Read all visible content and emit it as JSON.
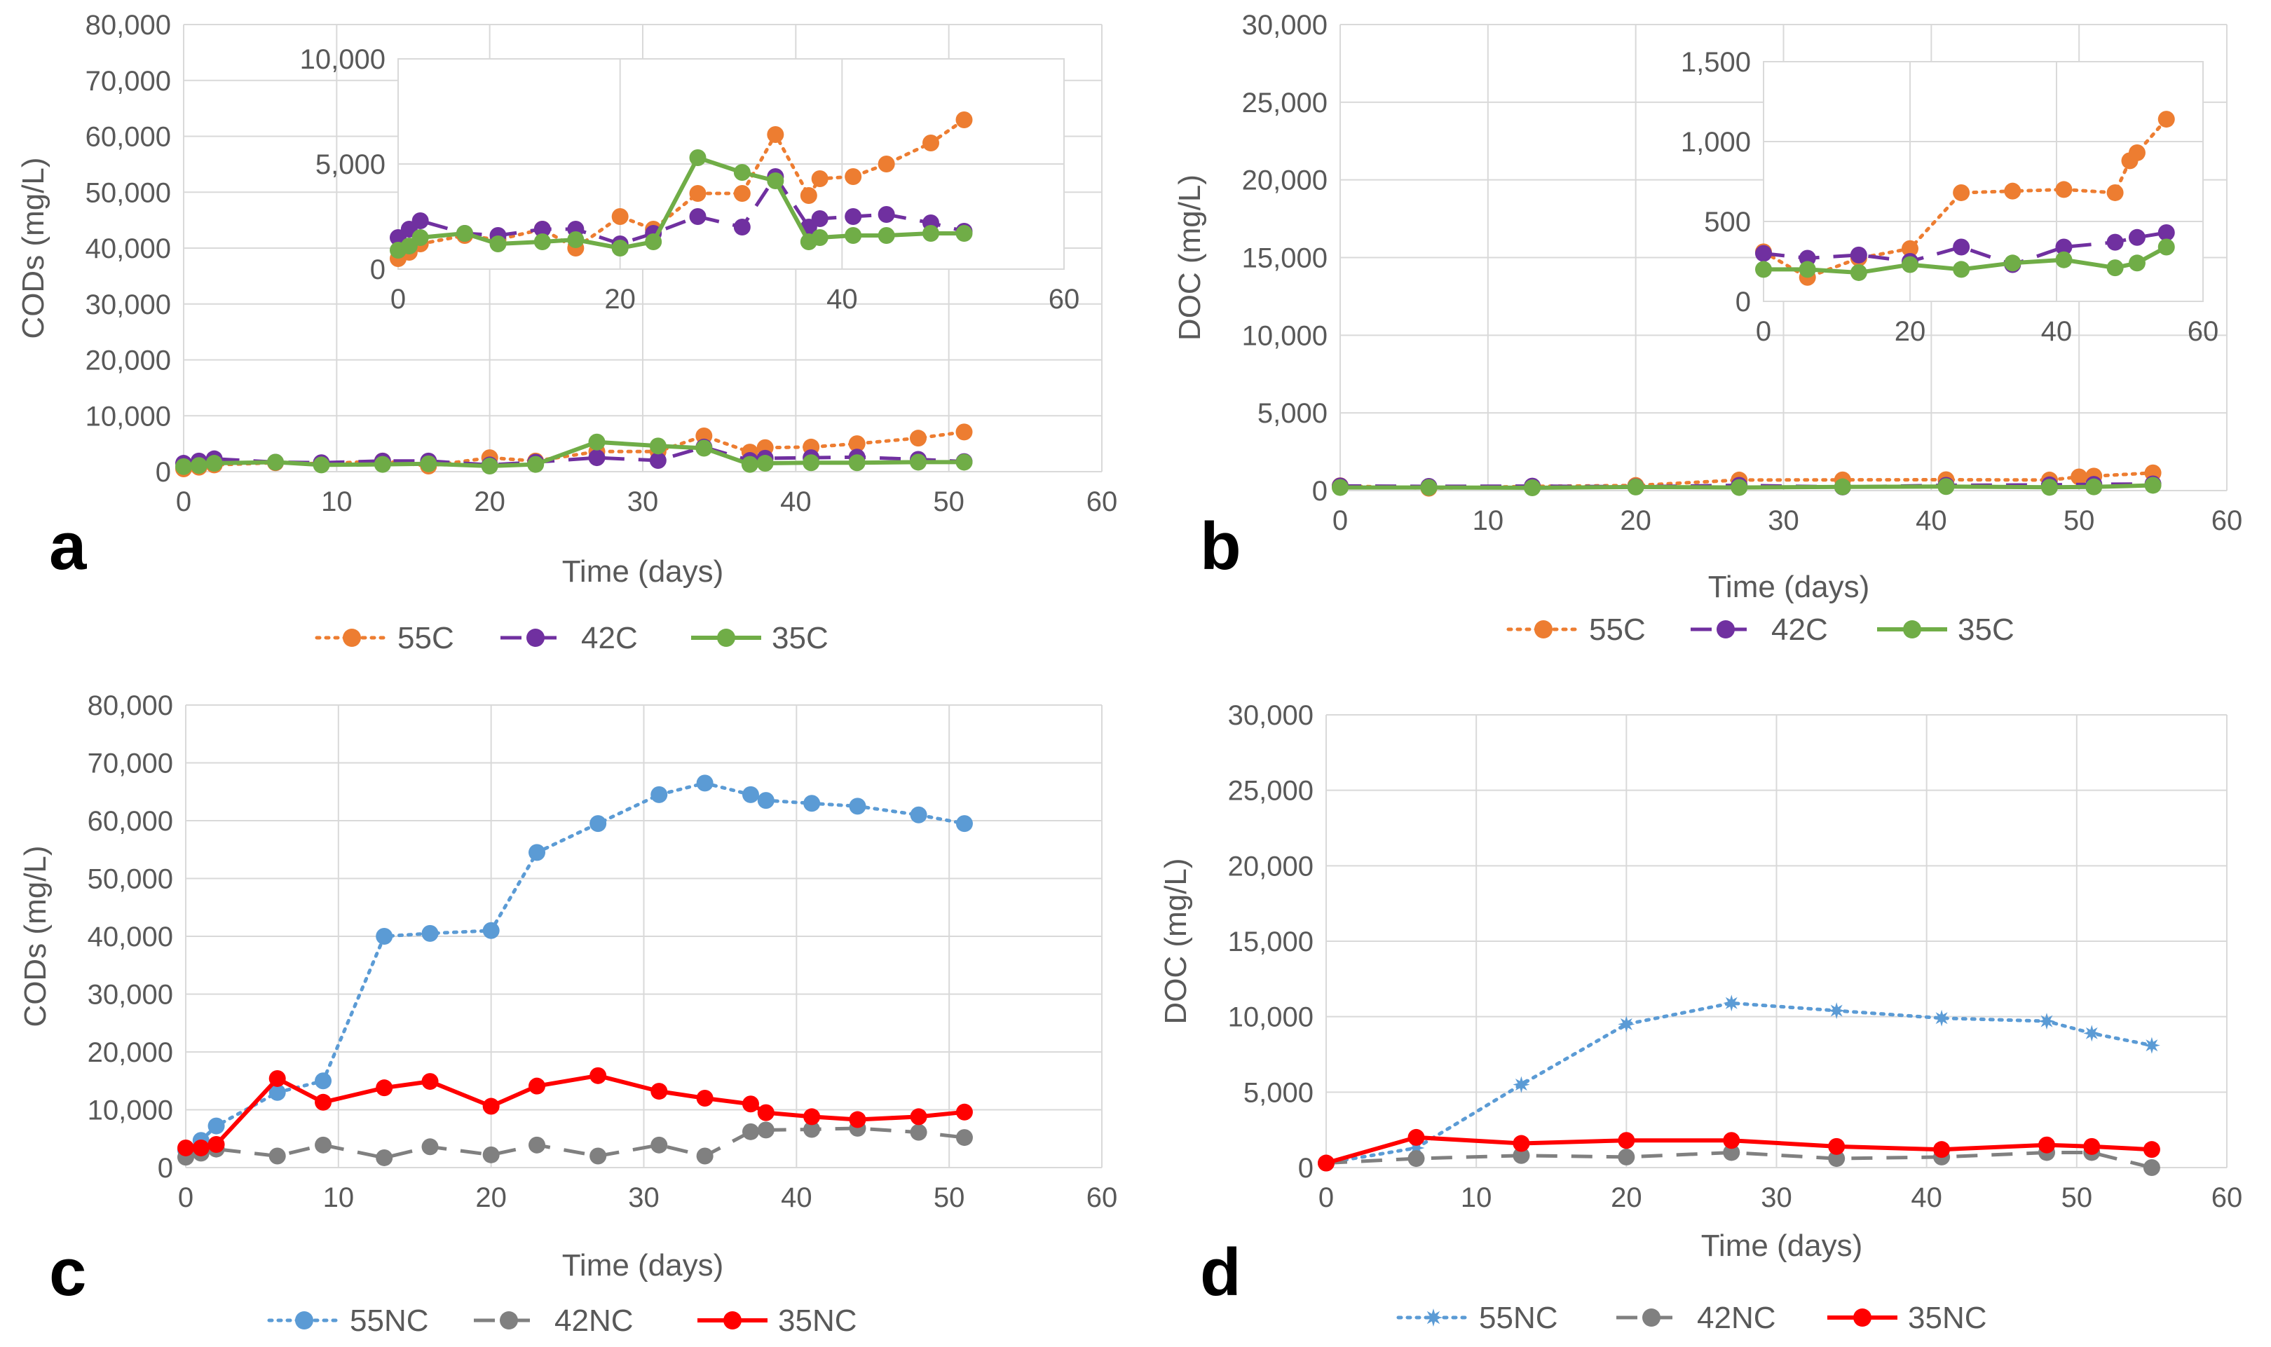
{
  "figure": {
    "panel_letters": [
      "a",
      "b",
      "c",
      "d"
    ]
  },
  "colors": {
    "s55": "#ED7D31",
    "s42": "#7030A0",
    "s35": "#70AD47",
    "nc55": "#5B9BD5",
    "nc42": "#808080",
    "nc35": "#FF0000",
    "grid": "#D9D9D9",
    "text": "#595959"
  },
  "chart_data": [
    {
      "id": "a",
      "type": "line",
      "ylabel": "CODs (mg/L)",
      "xlabel": "Time (days)",
      "xlim": [
        0,
        60
      ],
      "xticks": [
        0,
        10,
        20,
        30,
        40,
        50,
        60
      ],
      "ylim": [
        0,
        80000
      ],
      "yticks": [
        0,
        10000,
        20000,
        30000,
        40000,
        50000,
        60000,
        70000,
        80000
      ],
      "ytick_labels": [
        "0",
        "10,000",
        "20,000",
        "30,000",
        "40,000",
        "50,000",
        "60,000",
        "70,000",
        "80,000"
      ],
      "xtick_labels": [
        "0",
        "10",
        "20",
        "30",
        "40",
        "50",
        "60"
      ],
      "legend": [
        "55C",
        "42C",
        "35C"
      ],
      "series": [
        {
          "name": "55C",
          "style": "dotted",
          "color": "#ED7D31",
          "x": [
            0,
            1,
            2,
            6,
            9,
            13,
            16,
            20,
            23,
            27,
            31,
            34,
            37,
            38,
            41,
            44,
            48,
            51
          ],
          "y": [
            500,
            800,
            1200,
            1600,
            1400,
            1900,
            1000,
            2500,
            1900,
            3600,
            3600,
            6400,
            3500,
            4300,
            4400,
            5000,
            6000,
            7100
          ]
        },
        {
          "name": "42C",
          "style": "dashed",
          "color": "#7030A0",
          "x": [
            0,
            1,
            2,
            6,
            9,
            13,
            16,
            20,
            23,
            27,
            31,
            34,
            37,
            38,
            41,
            44,
            48,
            51
          ],
          "y": [
            1500,
            1900,
            2300,
            1700,
            1600,
            1900,
            1900,
            1200,
            1700,
            2500,
            2000,
            4400,
            2000,
            2400,
            2500,
            2600,
            2200,
            1800
          ]
        },
        {
          "name": "35C",
          "style": "solid",
          "color": "#70AD47",
          "x": [
            0,
            1,
            2,
            6,
            9,
            13,
            16,
            20,
            23,
            27,
            31,
            34,
            37,
            38,
            41,
            44,
            48,
            51
          ],
          "y": [
            900,
            1100,
            1500,
            1700,
            1200,
            1300,
            1400,
            1000,
            1300,
            5300,
            4600,
            4200,
            1300,
            1500,
            1600,
            1600,
            1700,
            1700
          ]
        }
      ],
      "inset": {
        "xlim": [
          0,
          60
        ],
        "xticks": [
          0,
          20,
          40,
          60
        ],
        "xtick_labels": [
          "0",
          "20",
          "40",
          "60"
        ],
        "ylim": [
          0,
          10000
        ],
        "yticks": [
          0,
          5000,
          10000
        ],
        "ytick_labels": [
          "0",
          "5,000",
          "10,000"
        ]
      }
    },
    {
      "id": "b",
      "type": "line",
      "ylabel": "DOC (mg/L)",
      "xlabel": "Time (days)",
      "xlim": [
        0,
        60
      ],
      "xticks": [
        0,
        10,
        20,
        30,
        40,
        50,
        60
      ],
      "ylim": [
        0,
        30000
      ],
      "yticks": [
        0,
        5000,
        10000,
        15000,
        20000,
        25000,
        30000
      ],
      "ytick_labels": [
        "0",
        "5,000",
        "10,000",
        "15,000",
        "20,000",
        "25,000",
        "30,000"
      ],
      "xtick_labels": [
        "0",
        "10",
        "20",
        "30",
        "40",
        "50",
        "60"
      ],
      "legend": [
        "55C",
        "42C",
        "35C"
      ],
      "series": [
        {
          "name": "55C",
          "style": "dotted",
          "color": "#ED7D31",
          "x": [
            0,
            6,
            13,
            20,
            27,
            34,
            41,
            48,
            50,
            51,
            55
          ],
          "y": [
            310,
            150,
            270,
            330,
            680,
            690,
            700,
            680,
            880,
            930,
            1140
          ]
        },
        {
          "name": "42C",
          "style": "dashed",
          "color": "#7030A0",
          "x": [
            0,
            6,
            13,
            20,
            27,
            34,
            41,
            48,
            51,
            55
          ],
          "y": [
            300,
            270,
            290,
            250,
            340,
            230,
            340,
            370,
            400,
            430
          ]
        },
        {
          "name": "35C",
          "style": "solid",
          "color": "#70AD47",
          "x": [
            0,
            6,
            13,
            20,
            27,
            34,
            41,
            48,
            51,
            55
          ],
          "y": [
            200,
            200,
            180,
            230,
            200,
            240,
            260,
            210,
            240,
            340
          ]
        }
      ],
      "inset": {
        "xlim": [
          0,
          60
        ],
        "xticks": [
          0,
          20,
          40,
          60
        ],
        "xtick_labels": [
          "0",
          "20",
          "40",
          "60"
        ],
        "ylim": [
          0,
          1500
        ],
        "yticks": [
          0,
          500,
          1000,
          1500
        ],
        "ytick_labels": [
          "0",
          "500",
          "1,000",
          "1,500"
        ]
      }
    },
    {
      "id": "c",
      "type": "line",
      "ylabel": "CODs (mg/L)",
      "xlabel": "Time (days)",
      "xlim": [
        0,
        60
      ],
      "xticks": [
        0,
        10,
        20,
        30,
        40,
        50,
        60
      ],
      "ylim": [
        0,
        80000
      ],
      "yticks": [
        0,
        10000,
        20000,
        30000,
        40000,
        50000,
        60000,
        70000,
        80000
      ],
      "ytick_labels": [
        "0",
        "10,000",
        "20,000",
        "30,000",
        "40,000",
        "50,000",
        "60,000",
        "70,000",
        "80,000"
      ],
      "xtick_labels": [
        "0",
        "10",
        "20",
        "30",
        "40",
        "50",
        "60"
      ],
      "legend": [
        "55NC",
        "42NC",
        "35NC"
      ],
      "series": [
        {
          "name": "55NC",
          "style": "dotted",
          "color": "#5B9BD5",
          "x": [
            0,
            1,
            2,
            6,
            9,
            13,
            16,
            20,
            23,
            27,
            31,
            34,
            37,
            38,
            41,
            44,
            48,
            51
          ],
          "y": [
            3000,
            4700,
            7200,
            13000,
            15000,
            40000,
            40500,
            41000,
            54500,
            59500,
            64500,
            66500,
            64500,
            63500,
            63000,
            62500,
            61000,
            59500
          ]
        },
        {
          "name": "42NC",
          "style": "dashed",
          "color": "#808080",
          "x": [
            0,
            1,
            2,
            6,
            9,
            13,
            16,
            20,
            23,
            27,
            31,
            34,
            37,
            38,
            41,
            44,
            48,
            51
          ],
          "y": [
            1800,
            2500,
            3200,
            2000,
            3900,
            1700,
            3600,
            2200,
            3900,
            2000,
            3900,
            2000,
            6200,
            6500,
            6600,
            6800,
            6100,
            5200
          ]
        },
        {
          "name": "35NC",
          "style": "solid",
          "color": "#FF0000",
          "x": [
            0,
            1,
            2,
            6,
            9,
            13,
            16,
            20,
            23,
            27,
            31,
            34,
            37,
            38,
            41,
            44,
            48,
            51
          ],
          "y": [
            3400,
            3400,
            4000,
            15400,
            11300,
            13800,
            14900,
            10600,
            14100,
            15900,
            13200,
            12000,
            11000,
            9500,
            8800,
            8300,
            8800,
            9600
          ]
        }
      ]
    },
    {
      "id": "d",
      "type": "line",
      "ylabel": "DOC (mg/L)",
      "xlabel": "Time (days)",
      "xlim": [
        0,
        60
      ],
      "xticks": [
        0,
        10,
        20,
        30,
        40,
        50,
        60
      ],
      "ylim": [
        0,
        30000
      ],
      "yticks": [
        0,
        5000,
        10000,
        15000,
        20000,
        25000,
        30000
      ],
      "ytick_labels": [
        "0",
        "5,000",
        "10,000",
        "15,000",
        "20,000",
        "25,000",
        "30,000"
      ],
      "xtick_labels": [
        "0",
        "10",
        "20",
        "30",
        "40",
        "50",
        "60"
      ],
      "legend": [
        "55NC",
        "42NC",
        "35NC"
      ],
      "series": [
        {
          "name": "55NC",
          "style": "dotted",
          "color": "#5B9BD5",
          "marker": "star",
          "x": [
            0,
            6,
            13,
            20,
            27,
            34,
            41,
            48,
            51,
            55
          ],
          "y": [
            300,
            1300,
            5500,
            9500,
            10900,
            10400,
            9900,
            9700,
            8900,
            8100
          ]
        },
        {
          "name": "42NC",
          "style": "dashed",
          "color": "#808080",
          "x": [
            0,
            6,
            13,
            20,
            27,
            34,
            41,
            48,
            51,
            55
          ],
          "y": [
            300,
            600,
            800,
            700,
            1000,
            600,
            700,
            1000,
            1000,
            0
          ]
        },
        {
          "name": "35NC",
          "style": "solid",
          "color": "#FF0000",
          "x": [
            0,
            6,
            13,
            20,
            27,
            34,
            41,
            48,
            51,
            55
          ],
          "y": [
            300,
            2000,
            1600,
            1800,
            1800,
            1400,
            1200,
            1500,
            1400,
            1200
          ]
        }
      ]
    }
  ]
}
